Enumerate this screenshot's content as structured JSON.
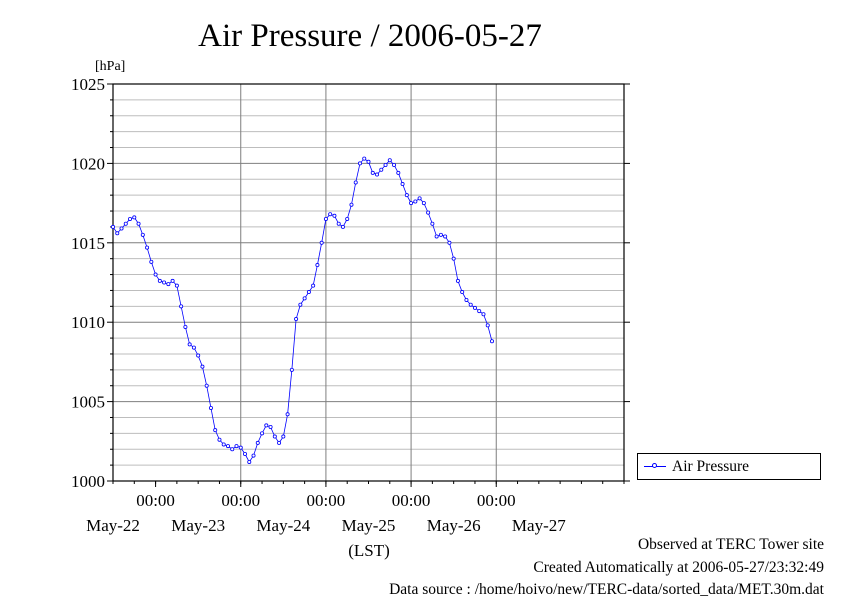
{
  "chart_data": {
    "type": "line",
    "title": "Air Pressure / 2006-05-27",
    "ylabel": "[hPa]",
    "xlabel": "(LST)",
    "ylim": [
      1000,
      1025
    ],
    "yticks": [
      "1000",
      "1005",
      "1010",
      "1015",
      "1020",
      "1025"
    ],
    "xlim_days": [
      -1.5,
      4.5
    ],
    "time_ticks": [
      "00:00",
      "00:00",
      "00:00",
      "00:00",
      "00:00"
    ],
    "date_ticks": [
      "May-22",
      "May-23",
      "May-24",
      "May-25",
      "May-26",
      "May-27"
    ],
    "grid": true,
    "legend_position": "right",
    "series": [
      {
        "name": "Air Pressure",
        "color": "#0000ff",
        "points": [
          [
            -1.5,
            1016.0
          ],
          [
            -1.45,
            1015.6
          ],
          [
            -1.4,
            1015.9
          ],
          [
            -1.35,
            1016.2
          ],
          [
            -1.3,
            1016.5
          ],
          [
            -1.25,
            1016.6
          ],
          [
            -1.2,
            1016.2
          ],
          [
            -1.15,
            1015.5
          ],
          [
            -1.1,
            1014.7
          ],
          [
            -1.05,
            1013.8
          ],
          [
            -1.0,
            1013.0
          ],
          [
            -0.95,
            1012.6
          ],
          [
            -0.9,
            1012.5
          ],
          [
            -0.85,
            1012.4
          ],
          [
            -0.8,
            1012.6
          ],
          [
            -0.75,
            1012.3
          ],
          [
            -0.7,
            1011.0
          ],
          [
            -0.65,
            1009.7
          ],
          [
            -0.6,
            1008.6
          ],
          [
            -0.55,
            1008.4
          ],
          [
            -0.5,
            1007.9
          ],
          [
            -0.45,
            1007.2
          ],
          [
            -0.4,
            1006.0
          ],
          [
            -0.35,
            1004.6
          ],
          [
            -0.3,
            1003.2
          ],
          [
            -0.25,
            1002.6
          ],
          [
            -0.2,
            1002.3
          ],
          [
            -0.15,
            1002.2
          ],
          [
            -0.1,
            1002.0
          ],
          [
            -0.05,
            1002.2
          ],
          [
            0.0,
            1002.1
          ],
          [
            0.05,
            1001.7
          ],
          [
            0.1,
            1001.2
          ],
          [
            0.15,
            1001.6
          ],
          [
            0.2,
            1002.4
          ],
          [
            0.25,
            1003.0
          ],
          [
            0.3,
            1003.5
          ],
          [
            0.35,
            1003.4
          ],
          [
            0.4,
            1002.8
          ],
          [
            0.45,
            1002.4
          ],
          [
            0.5,
            1002.8
          ],
          [
            0.55,
            1004.2
          ],
          [
            0.6,
            1007.0
          ],
          [
            0.65,
            1010.2
          ],
          [
            0.7,
            1011.1
          ],
          [
            0.75,
            1011.5
          ],
          [
            0.8,
            1011.9
          ],
          [
            0.85,
            1012.3
          ],
          [
            0.9,
            1013.6
          ],
          [
            0.95,
            1015.0
          ],
          [
            1.0,
            1016.5
          ],
          [
            1.05,
            1016.8
          ],
          [
            1.1,
            1016.7
          ],
          [
            1.15,
            1016.2
          ],
          [
            1.2,
            1016.0
          ],
          [
            1.25,
            1016.5
          ],
          [
            1.3,
            1017.4
          ],
          [
            1.35,
            1018.8
          ],
          [
            1.4,
            1020.0
          ],
          [
            1.45,
            1020.3
          ],
          [
            1.5,
            1020.1
          ],
          [
            1.55,
            1019.4
          ],
          [
            1.6,
            1019.3
          ],
          [
            1.65,
            1019.6
          ],
          [
            1.7,
            1019.9
          ],
          [
            1.75,
            1020.2
          ],
          [
            1.8,
            1019.9
          ],
          [
            1.85,
            1019.4
          ],
          [
            1.9,
            1018.7
          ],
          [
            1.95,
            1018.0
          ],
          [
            2.0,
            1017.5
          ],
          [
            2.05,
            1017.6
          ],
          [
            2.1,
            1017.8
          ],
          [
            2.15,
            1017.5
          ],
          [
            2.2,
            1016.9
          ],
          [
            2.25,
            1016.2
          ],
          [
            2.3,
            1015.4
          ],
          [
            2.35,
            1015.5
          ],
          [
            2.4,
            1015.4
          ],
          [
            2.45,
            1015.0
          ],
          [
            2.5,
            1014.0
          ],
          [
            2.55,
            1012.6
          ],
          [
            2.6,
            1011.9
          ],
          [
            2.65,
            1011.4
          ],
          [
            2.7,
            1011.1
          ],
          [
            2.75,
            1010.9
          ],
          [
            2.8,
            1010.7
          ],
          [
            2.85,
            1010.5
          ],
          [
            2.9,
            1009.8
          ],
          [
            2.95,
            1008.8
          ]
        ]
      }
    ]
  },
  "footer": {
    "site": "Observed at TERC Tower site",
    "created": "Created Automatically at 2006-05-27/23:32:49",
    "source": "Data source : /home/hoivo/new/TERC-data/sorted_data/MET.30m.dat"
  }
}
